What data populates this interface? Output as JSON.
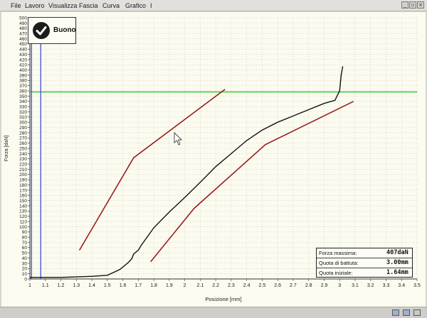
{
  "menu": {
    "items": [
      {
        "id": "file",
        "label": "File"
      },
      {
        "id": "lavoro",
        "label": "Lavoro"
      },
      {
        "id": "visualizza",
        "label": "Visualizza"
      },
      {
        "id": "fascia",
        "label": "Fascia"
      },
      {
        "id": "curva",
        "label": "Curva"
      },
      {
        "id": "grafico",
        "label": "Grafico"
      },
      {
        "id": "help",
        "label": "I"
      }
    ]
  },
  "window_buttons": {
    "minimize": "_",
    "restore": "▫",
    "close": "×"
  },
  "status": {
    "label": "Buono",
    "icon": "check-icon"
  },
  "info": {
    "rows": [
      {
        "label": "Forza massima:",
        "value": "407daN"
      },
      {
        "label": "Quota di battuta:",
        "value": "3.00mm"
      },
      {
        "label": "Quota iniziale:",
        "value": "1.64mm"
      }
    ]
  },
  "colors": {
    "background": "#fbfbef",
    "grid": "#bdbdb5",
    "threshold": "#2fd22f",
    "band": "#9b1d1d",
    "curve": "#111111",
    "start_lines": "#2a3ee0"
  },
  "chart_data": {
    "type": "line",
    "xlabel": "Posizione [mm]",
    "ylabel": "Forza [daN]",
    "xlim": [
      1,
      3.5
    ],
    "ylim": [
      0,
      500
    ],
    "x_ticks": [
      "1",
      "1.1",
      "1.2",
      "1.3",
      "1.4",
      "1.5",
      "1.6",
      "1.7",
      "1.8",
      "1.9",
      "2",
      "2.1",
      "2.2",
      "2.3",
      "2.4",
      "2.5",
      "2.6",
      "2.7",
      "2.8",
      "2.9",
      "3",
      "3.1",
      "3.2",
      "3.3",
      "3.4",
      "3.5"
    ],
    "y_ticks": [
      "0",
      "10",
      "20",
      "30",
      "40",
      "50",
      "60",
      "70",
      "80",
      "90",
      "100",
      "110",
      "120",
      "130",
      "140",
      "150",
      "160",
      "170",
      "180",
      "190",
      "200",
      "210",
      "220",
      "230",
      "240",
      "250",
      "260",
      "270",
      "280",
      "290",
      "300",
      "310",
      "320",
      "330",
      "340",
      "350",
      "360",
      "370",
      "380",
      "390",
      "400",
      "410",
      "420",
      "430",
      "440",
      "450",
      "460",
      "470",
      "480",
      "490",
      "500"
    ],
    "grid": true,
    "threshold": {
      "y": 358
    },
    "vertical_markers": [
      1.01,
      1.07
    ],
    "band_upper": {
      "x": [
        1.32,
        1.67,
        2.26
      ],
      "y": [
        55,
        232,
        363
      ]
    },
    "band_lower": {
      "x": [
        1.78,
        2.06,
        2.52,
        3.09
      ],
      "y": [
        33,
        135,
        257,
        340
      ]
    },
    "curve": {
      "x": [
        1.0,
        1.2,
        1.4,
        1.5,
        1.58,
        1.63,
        1.65,
        1.66,
        1.67,
        1.7,
        1.72,
        1.8,
        1.9,
        2.0,
        2.1,
        2.2,
        2.3,
        2.4,
        2.5,
        2.6,
        2.7,
        2.8,
        2.9,
        2.97,
        2.98,
        3.0,
        3.01,
        3.02
      ],
      "y": [
        3,
        3,
        5,
        7,
        18,
        30,
        36,
        40,
        48,
        55,
        65,
        98,
        128,
        156,
        185,
        215,
        240,
        265,
        285,
        300,
        312,
        324,
        336,
        342,
        348,
        360,
        390,
        407
      ]
    }
  }
}
